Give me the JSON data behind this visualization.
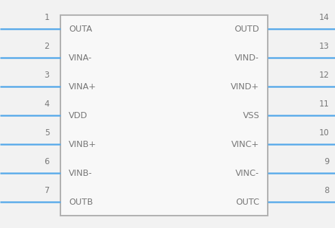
{
  "bg_color": "#f2f2f2",
  "box_color": "#b0b0b0",
  "box_fill": "#f8f8f8",
  "pin_line_color": "#5aabea",
  "text_color": "#777777",
  "num_color": "#777777",
  "left_pins": [
    {
      "num": 1,
      "label": "OUTA"
    },
    {
      "num": 2,
      "label": "VINA-"
    },
    {
      "num": 3,
      "label": "VINA+"
    },
    {
      "num": 4,
      "label": "VDD"
    },
    {
      "num": 5,
      "label": "VINB+"
    },
    {
      "num": 6,
      "label": "VINB-"
    },
    {
      "num": 7,
      "label": "OUTB"
    }
  ],
  "right_pins": [
    {
      "num": 14,
      "label": "OUTD"
    },
    {
      "num": 13,
      "label": "VIND-"
    },
    {
      "num": 12,
      "label": "VIND+"
    },
    {
      "num": 11,
      "label": "VSS"
    },
    {
      "num": 10,
      "label": "VINC+"
    },
    {
      "num": 9,
      "label": "VINC-"
    },
    {
      "num": 8,
      "label": "OUTC"
    }
  ],
  "label_font_size": 9.0,
  "num_font_size": 8.5,
  "pin_lw": 1.8
}
